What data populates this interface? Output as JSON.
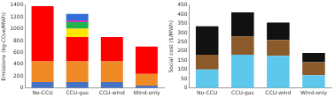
{
  "chart_data": [
    {
      "type": "bar",
      "stacked": true,
      "grid": false,
      "y_label": "Emissions (kg-CO₂e/MWh)",
      "categories": [
        "No-CCU",
        "CCU-gas",
        "CCU-wind",
        "Wind-only"
      ],
      "series": [
        {
          "color": "#4472c4",
          "values": [
            100,
            100,
            100,
            40
          ]
        },
        {
          "color": "#f08a24",
          "values": [
            350,
            350,
            350,
            200
          ]
        },
        {
          "color": "#ff0000",
          "values": [
            930,
            410,
            410,
            460
          ]
        },
        {
          "color": "#ffe600",
          "values": [
            0,
            140,
            0,
            0
          ]
        },
        {
          "color": "#22b14c",
          "values": [
            0,
            110,
            0,
            0
          ]
        },
        {
          "color": "#cc33cc",
          "values": [
            0,
            30,
            0,
            0
          ]
        },
        {
          "color": "#2f6fd6",
          "values": [
            0,
            110,
            0,
            0
          ]
        }
      ],
      "ylim": [
        0,
        1400
      ],
      "yticks": [
        0,
        200,
        400,
        600,
        800,
        1000,
        1200,
        1400
      ]
    },
    {
      "type": "bar",
      "stacked": true,
      "grid": false,
      "y_label": "Social cost ($/MWh)",
      "categories": [
        "No-CCU",
        "CCU-gas",
        "CCU-wind",
        "Wind-only"
      ],
      "series": [
        {
          "color": "#5ec8ec",
          "values": [
            100,
            180,
            175,
            70
          ]
        },
        {
          "color": "#8b5a2b",
          "values": [
            80,
            100,
            85,
            70
          ]
        },
        {
          "color": "#111111",
          "values": [
            155,
            130,
            95,
            50
          ]
        }
      ],
      "ylim": [
        0,
        450
      ],
      "yticks": [
        0,
        50,
        100,
        150,
        200,
        250,
        300,
        350,
        400,
        450
      ]
    }
  ]
}
